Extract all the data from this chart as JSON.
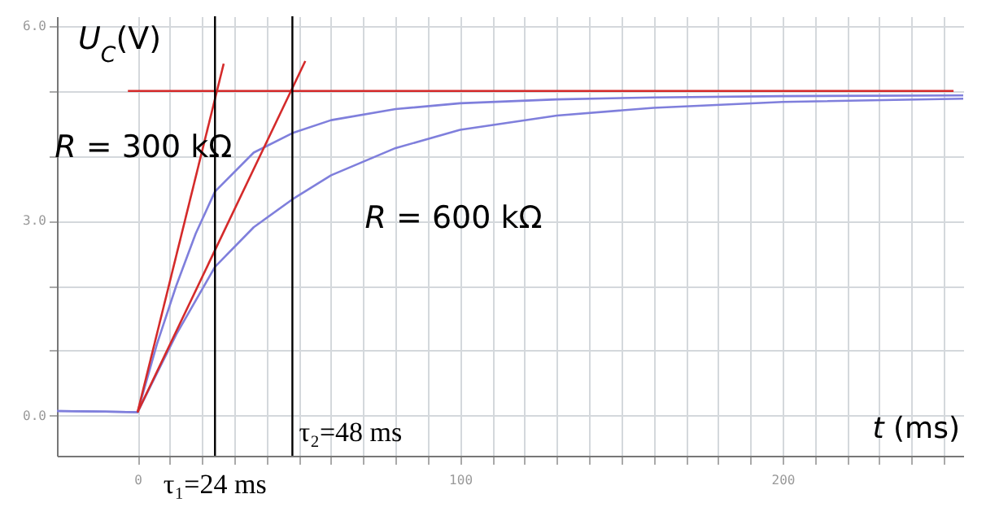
{
  "chart_data": {
    "type": "line",
    "xlabel": "t (ms)",
    "ylabel": "U$_{C}$(V)",
    "xlim": [
      -25,
      256
    ],
    "ylim": [
      -0.62,
      6.15
    ],
    "xticks": [
      0,
      {
        "value": 10,
        "label": null
      },
      {
        "value": 20,
        "label": null
      },
      {
        "value": 30,
        "label": null
      },
      {
        "value": 40,
        "label": null
      },
      {
        "value": 50,
        "label": null
      },
      {
        "value": 60,
        "label": null
      },
      {
        "value": 70,
        "label": null
      },
      {
        "value": 80,
        "label": null
      },
      {
        "value": 90,
        "label": null
      },
      100,
      {
        "value": 110,
        "label": null
      },
      {
        "value": 120,
        "label": null
      },
      {
        "value": 130,
        "label": null
      },
      {
        "value": 140,
        "label": null
      },
      {
        "value": 150,
        "label": null
      },
      {
        "value": 160,
        "label": null
      },
      {
        "value": 170,
        "label": null
      },
      {
        "value": 180,
        "label": null
      },
      {
        "value": 190,
        "label": null
      },
      200,
      {
        "value": 210,
        "label": null
      },
      {
        "value": 220,
        "label": null
      },
      {
        "value": 230,
        "label": null
      },
      {
        "value": 240,
        "label": null
      },
      {
        "value": 250,
        "label": null
      }
    ],
    "yticks": [
      {
        "value": 0,
        "label": "0.0"
      },
      {
        "value": 1,
        "label": null
      },
      {
        "value": 2,
        "label": null
      },
      {
        "value": 3,
        "label": "3.0"
      },
      {
        "value": 4,
        "label": null
      },
      {
        "value": 5,
        "label": null
      },
      {
        "value": 6,
        "label": "6.0"
      }
    ],
    "grid": true,
    "series": [
      {
        "name": "R = 300 kΩ",
        "color": "#7f7fdc",
        "x": [
          -25,
          -10,
          0,
          6,
          12,
          18,
          24,
          36,
          48,
          60,
          80,
          100,
          130,
          160,
          200,
          256
        ],
        "values": [
          0.07,
          0.06,
          0.05,
          1.1,
          2.0,
          2.8,
          3.45,
          4.05,
          4.35,
          4.55,
          4.72,
          4.81,
          4.87,
          4.9,
          4.92,
          4.93
        ]
      },
      {
        "name": "R = 600 kΩ",
        "color": "#7f7fdc",
        "x": [
          -25,
          -10,
          0,
          6,
          12,
          24,
          36,
          48,
          60,
          80,
          100,
          130,
          160,
          200,
          256
        ],
        "values": [
          0.07,
          0.06,
          0.05,
          0.65,
          1.25,
          2.29,
          2.9,
          3.33,
          3.7,
          4.12,
          4.4,
          4.62,
          4.74,
          4.83,
          4.88
        ]
      },
      {
        "color": "#d42a2a",
        "x": [
          -3,
          253
        ],
        "values": [
          5.0,
          5.0
        ]
      },
      {
        "color": "#d42a2a",
        "x": [
          0,
          26.7
        ],
        "values": [
          0.05,
          5.42
        ]
      },
      {
        "color": "#d42a2a",
        "x": [
          0,
          52
        ],
        "values": [
          0.05,
          5.46
        ]
      }
    ],
    "ref_lines": [
      {
        "axis": "x",
        "value": 24,
        "label": "τ₁=24 ms",
        "color": "#000000"
      },
      {
        "axis": "x",
        "value": 48,
        "label": "τ₂=48 ms",
        "color": "#000000"
      }
    ]
  }
}
